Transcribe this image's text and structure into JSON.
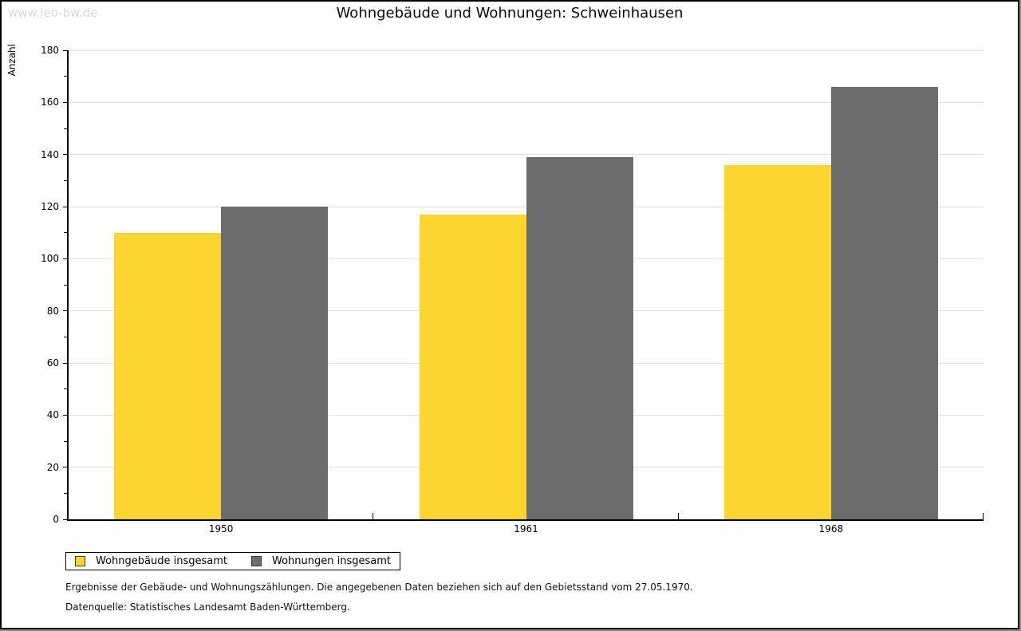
{
  "watermark": "www.leo-bw.de",
  "title": "Wohngebäude und Wohnungen: Schweinhausen",
  "footnotes": [
    "Ergebnisse der Gebäude- und Wohnungszählungen. Die angegebenen Daten beziehen sich auf den Gebietsstand vom 27.05.1970.",
    "Datenquelle: Statistisches Landesamt Baden-Württemberg."
  ],
  "chart_data": {
    "type": "bar",
    "title": "Wohngebäude und Wohnungen: Schweinhausen",
    "xlabel": "",
    "ylabel": "Anzahl",
    "categories": [
      "1950",
      "1961",
      "1968"
    ],
    "series": [
      {
        "name": "Wohngebäude insgesamt",
        "color": "#FBD52D",
        "values": [
          110,
          117,
          136
        ]
      },
      {
        "name": "Wohnungen insgesamt",
        "color": "#6C6C6C",
        "values": [
          120,
          139,
          166
        ]
      }
    ],
    "ylim": [
      0,
      180
    ],
    "ytick_step": 20,
    "yminor_step": 10,
    "grid": "horizontal-major",
    "gridline_color": "#e2e2e2",
    "legend_position": "bottom-left"
  }
}
